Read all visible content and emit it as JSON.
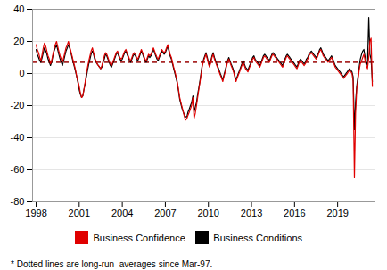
{
  "chart_data": {
    "type": "line",
    "x": [
      1998.0,
      1998.08,
      1998.17,
      1998.25,
      1998.33,
      1998.42,
      1998.5,
      1998.58,
      1998.67,
      1998.75,
      1998.83,
      1998.92,
      1999.0,
      1999.08,
      1999.17,
      1999.25,
      1999.33,
      1999.42,
      1999.5,
      1999.58,
      1999.67,
      1999.75,
      1999.83,
      1999.92,
      2000.0,
      2000.08,
      2000.17,
      2000.25,
      2000.33,
      2000.42,
      2000.5,
      2000.58,
      2000.67,
      2000.75,
      2000.83,
      2000.92,
      2001.0,
      2001.08,
      2001.17,
      2001.25,
      2001.33,
      2001.42,
      2001.5,
      2001.58,
      2001.67,
      2001.75,
      2001.83,
      2001.92,
      2002.0,
      2002.08,
      2002.17,
      2002.25,
      2002.33,
      2002.42,
      2002.5,
      2002.58,
      2002.67,
      2002.75,
      2002.83,
      2002.92,
      2003.0,
      2003.08,
      2003.17,
      2003.25,
      2003.33,
      2003.42,
      2003.5,
      2003.58,
      2003.67,
      2003.75,
      2003.83,
      2003.92,
      2004.0,
      2004.08,
      2004.17,
      2004.25,
      2004.33,
      2004.42,
      2004.5,
      2004.58,
      2004.67,
      2004.75,
      2004.83,
      2004.92,
      2005.0,
      2005.08,
      2005.17,
      2005.25,
      2005.33,
      2005.42,
      2005.5,
      2005.58,
      2005.67,
      2005.75,
      2005.83,
      2005.92,
      2006.0,
      2006.08,
      2006.17,
      2006.25,
      2006.33,
      2006.42,
      2006.5,
      2006.58,
      2006.67,
      2006.75,
      2006.83,
      2006.92,
      2007.0,
      2007.08,
      2007.17,
      2007.25,
      2007.33,
      2007.42,
      2007.5,
      2007.58,
      2007.67,
      2007.75,
      2007.83,
      2007.92,
      2008.0,
      2008.08,
      2008.17,
      2008.25,
      2008.33,
      2008.42,
      2008.5,
      2008.58,
      2008.67,
      2008.75,
      2008.83,
      2008.92,
      2009.0,
      2009.08,
      2009.17,
      2009.25,
      2009.33,
      2009.42,
      2009.5,
      2009.58,
      2009.67,
      2009.75,
      2009.83,
      2009.92,
      2010.0,
      2010.08,
      2010.17,
      2010.25,
      2010.33,
      2010.42,
      2010.5,
      2010.58,
      2010.67,
      2010.75,
      2010.83,
      2010.92,
      2011.0,
      2011.08,
      2011.17,
      2011.25,
      2011.33,
      2011.42,
      2011.5,
      2011.58,
      2011.67,
      2011.75,
      2011.83,
      2011.92,
      2012.0,
      2012.08,
      2012.17,
      2012.25,
      2012.33,
      2012.42,
      2012.5,
      2012.58,
      2012.67,
      2012.75,
      2012.83,
      2012.92,
      2013.0,
      2013.08,
      2013.17,
      2013.25,
      2013.33,
      2013.42,
      2013.5,
      2013.58,
      2013.67,
      2013.75,
      2013.83,
      2013.92,
      2014.0,
      2014.08,
      2014.17,
      2014.25,
      2014.33,
      2014.42,
      2014.5,
      2014.58,
      2014.67,
      2014.75,
      2014.83,
      2014.92,
      2015.0,
      2015.08,
      2015.17,
      2015.25,
      2015.33,
      2015.42,
      2015.5,
      2015.58,
      2015.67,
      2015.75,
      2015.83,
      2015.92,
      2016.0,
      2016.08,
      2016.17,
      2016.25,
      2016.33,
      2016.42,
      2016.5,
      2016.58,
      2016.67,
      2016.75,
      2016.83,
      2016.92,
      2017.0,
      2017.08,
      2017.17,
      2017.25,
      2017.33,
      2017.42,
      2017.5,
      2017.58,
      2017.67,
      2017.75,
      2017.83,
      2017.92,
      2018.0,
      2018.08,
      2018.17,
      2018.25,
      2018.33,
      2018.42,
      2018.5,
      2018.58,
      2018.67,
      2018.75,
      2018.83,
      2018.92,
      2019.0,
      2019.08,
      2019.17,
      2019.25,
      2019.33,
      2019.42,
      2019.5,
      2019.58,
      2019.67,
      2019.75,
      2019.83,
      2019.92,
      2020.0,
      2020.08,
      2020.17,
      2020.25,
      2020.33,
      2020.42,
      2020.5,
      2020.58,
      2020.67,
      2020.75,
      2020.83,
      2020.92,
      2021.0,
      2021.08,
      2021.17,
      2021.25,
      2021.33,
      2021.42
    ],
    "series": [
      {
        "name": "Business Confidence",
        "color": "#e00000",
        "values": [
          18,
          15,
          13,
          10,
          8,
          12,
          16,
          19,
          17,
          14,
          11,
          9,
          6,
          8,
          12,
          15,
          18,
          20,
          17,
          14,
          11,
          9,
          7,
          10,
          13,
          16,
          18,
          20,
          17,
          14,
          11,
          8,
          5,
          2,
          -2,
          -5,
          -8,
          -12,
          -15,
          -14,
          -10,
          -5,
          0,
          4,
          8,
          11,
          14,
          16,
          13,
          10,
          8,
          6,
          5,
          4,
          3,
          5,
          8,
          11,
          13,
          12,
          10,
          8,
          6,
          5,
          7,
          9,
          11,
          13,
          14,
          12,
          10,
          9,
          10,
          12,
          14,
          15,
          13,
          11,
          9,
          8,
          10,
          12,
          13,
          12,
          10,
          9,
          11,
          13,
          15,
          13,
          11,
          9,
          8,
          10,
          12,
          11,
          12,
          14,
          16,
          14,
          12,
          10,
          9,
          11,
          13,
          15,
          14,
          13,
          14,
          16,
          18,
          15,
          12,
          10,
          7,
          4,
          1,
          -2,
          -5,
          -10,
          -15,
          -18,
          -21,
          -24,
          -27,
          -29,
          -28,
          -26,
          -24,
          -22,
          -20,
          -15,
          -28,
          -25,
          -20,
          -15,
          -10,
          -5,
          0,
          5,
          8,
          10,
          12,
          9,
          6,
          4,
          7,
          10,
          12,
          9,
          7,
          5,
          3,
          1,
          -1,
          -3,
          -5,
          -2,
          1,
          4,
          7,
          9,
          7,
          5,
          3,
          1,
          -2,
          -5,
          -3,
          -1,
          1,
          3,
          5,
          7,
          5,
          3,
          2,
          1,
          3,
          5,
          7,
          9,
          10,
          8,
          7,
          6,
          5,
          4,
          6,
          8,
          10,
          11,
          10,
          9,
          8,
          7,
          9,
          11,
          12,
          11,
          10,
          9,
          8,
          7,
          6,
          5,
          4,
          6,
          8,
          10,
          11,
          10,
          9,
          8,
          7,
          6,
          5,
          4,
          3,
          5,
          7,
          8,
          7,
          6,
          5,
          6,
          8,
          9,
          11,
          12,
          13,
          12,
          11,
          10,
          9,
          10,
          12,
          14,
          15,
          13,
          11,
          10,
          9,
          8,
          7,
          8,
          9,
          10,
          8,
          6,
          4,
          3,
          2,
          1,
          0,
          -1,
          -2,
          -3,
          -2,
          -1,
          0,
          1,
          2,
          1,
          0,
          -5,
          -65,
          -25,
          -10,
          -4,
          2,
          6,
          8,
          10,
          12,
          8,
          5,
          3,
          10,
          20,
          22,
          -8
        ]
      },
      {
        "name": "Business Conditions",
        "color": "#000000",
        "values": [
          15,
          12,
          10,
          8,
          7,
          10,
          13,
          16,
          14,
          12,
          9,
          7,
          5,
          7,
          11,
          14,
          16,
          18,
          15,
          12,
          9,
          7,
          5,
          8,
          11,
          14,
          16,
          18,
          16,
          13,
          10,
          7,
          4,
          1,
          -2,
          -6,
          -10,
          -13,
          -15,
          -14,
          -10,
          -6,
          -2,
          2,
          6,
          9,
          12,
          14,
          12,
          9,
          7,
          6,
          5,
          4,
          3,
          4,
          7,
          9,
          12,
          11,
          9,
          7,
          5,
          4,
          6,
          8,
          10,
          12,
          13,
          11,
          9,
          8,
          9,
          11,
          13,
          14,
          12,
          10,
          8,
          7,
          9,
          11,
          12,
          11,
          9,
          8,
          10,
          12,
          14,
          12,
          10,
          8,
          7,
          9,
          11,
          10,
          11,
          13,
          15,
          13,
          11,
          9,
          8,
          10,
          12,
          14,
          13,
          12,
          13,
          15,
          17,
          14,
          11,
          9,
          6,
          3,
          0,
          -3,
          -6,
          -11,
          -16,
          -19,
          -22,
          -24,
          -26,
          -27,
          -27,
          -24,
          -22,
          -20,
          -18,
          -14,
          -24,
          -21,
          -18,
          -13,
          -9,
          -4,
          1,
          6,
          9,
          11,
          13,
          10,
          7,
          5,
          8,
          11,
          13,
          10,
          8,
          6,
          4,
          2,
          0,
          -2,
          -4,
          -1,
          2,
          5,
          8,
          10,
          8,
          6,
          4,
          2,
          -1,
          -4,
          -2,
          0,
          2,
          4,
          6,
          8,
          6,
          4,
          3,
          2,
          4,
          6,
          8,
          10,
          11,
          9,
          8,
          7,
          6,
          5,
          7,
          9,
          11,
          12,
          11,
          10,
          9,
          8,
          10,
          12,
          13,
          12,
          11,
          10,
          9,
          8,
          7,
          6,
          5,
          7,
          9,
          11,
          12,
          11,
          10,
          9,
          8,
          7,
          6,
          5,
          4,
          6,
          8,
          9,
          8,
          7,
          6,
          7,
          9,
          10,
          12,
          13,
          14,
          13,
          12,
          11,
          10,
          11,
          13,
          15,
          16,
          14,
          12,
          11,
          10,
          9,
          8,
          9,
          10,
          11,
          9,
          7,
          5,
          4,
          3,
          2,
          1,
          0,
          -1,
          -2,
          -1,
          0,
          1,
          2,
          3,
          2,
          1,
          -2,
          -35,
          -18,
          -8,
          -2,
          4,
          9,
          12,
          14,
          15,
          10,
          7,
          5,
          35,
          12,
          9,
          -5
        ]
      }
    ],
    "hlines": [
      {
        "y": 7,
        "color": "#e00000",
        "line_style": "dashed"
      },
      {
        "y": 7,
        "color": "#000000",
        "line_style": "dashed"
      }
    ],
    "xlim": [
      1997.75,
      2021.6
    ],
    "ylim": [
      -80,
      40
    ],
    "xticks": [
      1998,
      2001,
      2004,
      2007,
      2010,
      2013,
      2016,
      2019
    ],
    "yticks": [
      -80,
      -60,
      -40,
      -20,
      0,
      20,
      40
    ],
    "grid": "y",
    "legend": "bottom",
    "footnote": "* Dotted lines are long-run  averages since Mar-97."
  }
}
